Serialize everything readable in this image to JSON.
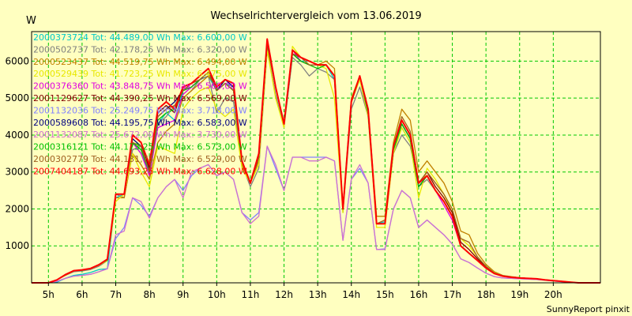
{
  "chart_data": {
    "type": "line",
    "title": "Wechselrichtervergleich vom 13.06.2019",
    "ylabel": "W",
    "footer": "SunnyReport pinxit",
    "xlim": [
      4.5,
      21.4
    ],
    "ylim": [
      0,
      6800
    ],
    "x_ticks": [
      5,
      6,
      7,
      8,
      9,
      10,
      11,
      12,
      13,
      14,
      15,
      16,
      17,
      18,
      19,
      20
    ],
    "x_tick_labels": [
      "5h",
      "6h",
      "7h",
      "8h",
      "9h",
      "10h",
      "11h",
      "12h",
      "13h",
      "14h",
      "15h",
      "16h",
      "17h",
      "18h",
      "19h",
      "20h"
    ],
    "y_ticks": [
      1000,
      2000,
      3000,
      4000,
      5000,
      6000
    ],
    "grid": true,
    "legend_position": "top-left",
    "x": [
      4.5,
      5.0,
      5.25,
      5.5,
      5.75,
      6.0,
      6.25,
      6.5,
      6.75,
      7.0,
      7.25,
      7.5,
      7.75,
      8.0,
      8.25,
      8.5,
      8.75,
      9.0,
      9.25,
      9.5,
      9.75,
      10.0,
      10.25,
      10.5,
      10.75,
      11.0,
      11.25,
      11.5,
      11.75,
      12.0,
      12.25,
      12.5,
      12.75,
      13.0,
      13.25,
      13.5,
      13.75,
      14.0,
      14.25,
      14.5,
      14.75,
      15.0,
      15.25,
      15.5,
      15.75,
      16.0,
      16.25,
      16.5,
      16.75,
      17.0,
      17.25,
      17.5,
      17.75,
      18.0,
      18.25,
      18.5,
      18.75,
      19.0,
      19.25,
      19.5,
      19.75,
      20.0,
      20.25,
      20.5,
      20.75,
      21.0,
      21.4
    ],
    "series": [
      {
        "name": "2000373724 Tot: 44.489,00 Wh Max: 6.600,00 W",
        "color": "#00c8c8",
        "values": [
          0,
          0,
          20,
          120,
          200,
          230,
          280,
          360,
          380,
          2300,
          2400,
          3800,
          3500,
          3000,
          4300,
          4600,
          4400,
          5200,
          5300,
          5500,
          5600,
          5200,
          5400,
          5300,
          3300,
          2700,
          3400,
          6500,
          5300,
          4300,
          6200,
          6000,
          6000,
          5900,
          5900,
          5500,
          2000,
          4900,
          5500,
          4600,
          1600,
          1650,
          3600,
          4200,
          3800,
          2700,
          2900,
          2500,
          2200,
          1800,
          1000,
          800,
          600,
          400,
          250,
          180,
          150,
          130,
          120,
          110,
          80,
          60,
          40,
          20,
          0,
          0,
          0
        ]
      },
      {
        "name": "2000502737 Tot: 42.178,25 Wh Max: 6.320,00 W",
        "color": "#808080",
        "values": [
          0,
          0,
          80,
          200,
          300,
          320,
          360,
          450,
          600,
          2400,
          2300,
          3600,
          3700,
          3100,
          4300,
          4500,
          4800,
          5000,
          5200,
          5500,
          5600,
          4600,
          5000,
          4900,
          3200,
          2600,
          3100,
          6300,
          5100,
          4200,
          6100,
          5900,
          5600,
          5800,
          5700,
          5500,
          1900,
          4700,
          5300,
          4500,
          1600,
          1600,
          3500,
          4000,
          3700,
          2600,
          2800,
          2500,
          2200,
          1800,
          1000,
          800,
          600,
          400,
          250,
          180,
          150,
          130,
          120,
          110,
          80,
          60,
          40,
          20,
          0,
          0,
          0
        ]
      },
      {
        "name": "2000523437 Tot: 44.519,75 Wh Max: 6.494,00 W",
        "color": "#c08000",
        "values": [
          0,
          0,
          80,
          200,
          320,
          340,
          380,
          480,
          620,
          2300,
          2300,
          3500,
          3200,
          2800,
          3800,
          4100,
          4300,
          5000,
          5200,
          5400,
          5600,
          5300,
          5500,
          5400,
          3200,
          2700,
          3300,
          6400,
          5300,
          4300,
          6300,
          6100,
          6000,
          5900,
          6000,
          5800,
          2000,
          5000,
          5600,
          4700,
          1800,
          1800,
          3800,
          4700,
          4400,
          3000,
          3300,
          3000,
          2700,
          2200,
          1400,
          1300,
          800,
          500,
          300,
          200,
          170,
          140,
          120,
          110,
          80,
          60,
          40,
          20,
          0,
          0,
          0
        ]
      },
      {
        "name": "2000529439 Tot: 41.723,25 Wh Max: 6.475,00 W",
        "color": "#e8e800",
        "values": [
          0,
          0,
          80,
          220,
          330,
          350,
          380,
          480,
          600,
          2200,
          2400,
          3500,
          3000,
          2600,
          3700,
          3600,
          3500,
          4700,
          5000,
          5200,
          5300,
          4700,
          4500,
          4700,
          3100,
          2700,
          3200,
          6300,
          5000,
          4200,
          6400,
          6100,
          5900,
          5900,
          5800,
          5000,
          1900,
          4900,
          5500,
          4500,
          1500,
          1500,
          3500,
          4200,
          3800,
          2300,
          3100,
          2800,
          2400,
          1900,
          1200,
          1000,
          700,
          450,
          280,
          190,
          160,
          140,
          120,
          110,
          80,
          60,
          40,
          20,
          0,
          0,
          0
        ]
      },
      {
        "name": "2000376360 Tot: 43.848,75 Wh Max: 6.560,00 W",
        "color": "#e000e0",
        "values": [
          0,
          0,
          80,
          220,
          330,
          350,
          390,
          490,
          630,
          2400,
          2400,
          3800,
          3500,
          2900,
          4200,
          4300,
          4400,
          5100,
          5300,
          5500,
          5700,
          5200,
          5400,
          5200,
          3300,
          2700,
          3400,
          6500,
          5300,
          4300,
          6300,
          6000,
          5900,
          5900,
          5900,
          5600,
          2000,
          4900,
          5600,
          4600,
          1600,
          1600,
          3600,
          4300,
          3900,
          2600,
          2900,
          2500,
          2100,
          1700,
          1000,
          800,
          600,
          400,
          250,
          180,
          150,
          130,
          120,
          110,
          80,
          60,
          40,
          20,
          0,
          0,
          0
        ]
      },
      {
        "name": "2001129627 Tot: 44.390,25 Wh Max: 6.569,00 W",
        "color": "#800000",
        "values": [
          0,
          0,
          80,
          220,
          330,
          350,
          390,
          490,
          640,
          2400,
          2400,
          4000,
          3800,
          3100,
          4600,
          4800,
          4600,
          5300,
          5400,
          5600,
          5800,
          5200,
          5500,
          5400,
          3300,
          2700,
          3400,
          6500,
          5300,
          4300,
          6200,
          6100,
          6000,
          5900,
          5900,
          5600,
          2000,
          4900,
          5600,
          4700,
          1600,
          1600,
          3700,
          4400,
          4000,
          2700,
          3000,
          2600,
          2300,
          1900,
          1100,
          900,
          650,
          420,
          260,
          190,
          160,
          140,
          120,
          110,
          80,
          60,
          40,
          20,
          0,
          0,
          0
        ]
      },
      {
        "name": "2001132036 Tot: 25.249,75 Wh Max: 3.718,00 W",
        "color": "#8080ff",
        "values": [
          0,
          0,
          40,
          120,
          180,
          200,
          230,
          300,
          380,
          1200,
          1500,
          2300,
          2100,
          1800,
          2300,
          2600,
          2800,
          2500,
          2900,
          3100,
          3200,
          2900,
          3000,
          2800,
          1900,
          1700,
          1900,
          3700,
          3100,
          2500,
          3400,
          3400,
          3400,
          3400,
          3400,
          3300,
          1150,
          2800,
          3100,
          2700,
          900,
          920,
          2000,
          2500,
          2300,
          1500,
          1700,
          1500,
          1300,
          1050,
          650,
          550,
          400,
          260,
          170,
          130,
          120,
          110,
          100,
          90,
          70,
          50,
          30,
          15,
          0,
          0,
          0
        ]
      },
      {
        "name": "2000589608 Tot: 44.195,75 Wh Max: 6.583,00 W",
        "color": "#000080",
        "values": [
          0,
          0,
          80,
          220,
          330,
          350,
          390,
          490,
          630,
          2400,
          2400,
          3900,
          3700,
          3000,
          4500,
          4700,
          4900,
          5200,
          5400,
          5500,
          5700,
          5200,
          5500,
          5300,
          3300,
          2700,
          3400,
          6500,
          5300,
          4300,
          6200,
          6100,
          6000,
          5900,
          5900,
          5600,
          2000,
          4900,
          5600,
          4600,
          1600,
          1600,
          3700,
          4300,
          3900,
          2600,
          2900,
          2500,
          2200,
          1800,
          1000,
          800,
          600,
          400,
          250,
          180,
          150,
          130,
          120,
          110,
          80,
          60,
          40,
          20,
          0,
          0,
          0
        ]
      },
      {
        "name": "2001132087 Tot: 25.672,00 Wh Max: 3.730,00 W",
        "color": "#d070d0",
        "values": [
          0,
          0,
          40,
          120,
          180,
          200,
          230,
          300,
          380,
          1300,
          1400,
          2300,
          2200,
          1750,
          2300,
          2600,
          2800,
          2300,
          3000,
          3100,
          3200,
          2900,
          3000,
          2800,
          1900,
          1600,
          1800,
          3700,
          3200,
          2500,
          3400,
          3400,
          3300,
          3300,
          3400,
          3300,
          1150,
          2800,
          3200,
          2700,
          900,
          900,
          2000,
          2500,
          2300,
          1500,
          1700,
          1500,
          1300,
          1050,
          650,
          550,
          400,
          260,
          170,
          130,
          120,
          110,
          100,
          90,
          70,
          50,
          30,
          15,
          0,
          0,
          0
        ]
      },
      {
        "name": "2000316121 Tot: 44.173,25 Wh Max: 6.573,00 W",
        "color": "#00c000",
        "values": [
          0,
          0,
          80,
          220,
          330,
          350,
          390,
          490,
          620,
          2400,
          2400,
          3800,
          3600,
          3000,
          4400,
          4600,
          4700,
          5200,
          5300,
          5500,
          5700,
          5200,
          5400,
          5200,
          3300,
          2700,
          3400,
          6500,
          5300,
          4300,
          6200,
          6000,
          5900,
          5800,
          5900,
          5600,
          2000,
          4900,
          5600,
          4600,
          1600,
          1600,
          3600,
          4300,
          3900,
          2600,
          2900,
          2500,
          2200,
          1800,
          1000,
          800,
          600,
          400,
          250,
          180,
          150,
          130,
          120,
          110,
          80,
          60,
          40,
          20,
          0,
          0,
          0
        ]
      },
      {
        "name": "2000302779 Tot: 44.131,75 Wh Max: 6.529,00 W",
        "color": "#a06020",
        "values": [
          0,
          0,
          80,
          220,
          330,
          350,
          390,
          490,
          630,
          2400,
          2400,
          3800,
          3700,
          3000,
          4500,
          4700,
          4800,
          5200,
          5400,
          5500,
          5700,
          5200,
          5400,
          5200,
          3300,
          2700,
          3400,
          6500,
          5300,
          4300,
          6200,
          6100,
          5900,
          5900,
          5900,
          5600,
          2000,
          4900,
          5600,
          4700,
          1600,
          1700,
          3700,
          4500,
          4100,
          2700,
          3000,
          2700,
          2400,
          2000,
          1200,
          1100,
          700,
          450,
          270,
          190,
          160,
          140,
          120,
          110,
          80,
          60,
          40,
          20,
          0,
          0,
          0
        ]
      },
      {
        "name": "2007404187 Tot: 44.693,25 Wh Max: 6.628,00 W",
        "color": "#ff0000",
        "values": [
          0,
          0,
          80,
          220,
          330,
          350,
          390,
          490,
          640,
          2400,
          2400,
          4000,
          3800,
          3200,
          4700,
          4900,
          4700,
          5300,
          5400,
          5600,
          5800,
          5300,
          5500,
          5400,
          3300,
          2700,
          3500,
          6600,
          5300,
          4300,
          6300,
          6100,
          6000,
          5900,
          5900,
          5600,
          2000,
          4900,
          5600,
          4700,
          1600,
          1600,
          3700,
          4400,
          4000,
          2700,
          2900,
          2500,
          2200,
          1800,
          1000,
          800,
          600,
          400,
          250,
          180,
          150,
          130,
          120,
          110,
          80,
          60,
          40,
          20,
          0,
          0,
          0
        ]
      }
    ]
  }
}
